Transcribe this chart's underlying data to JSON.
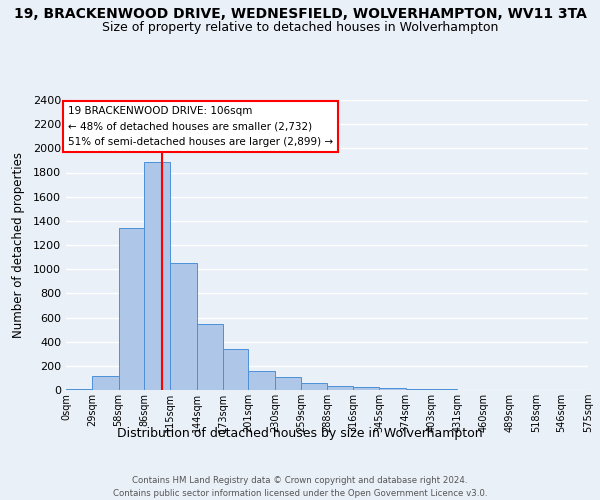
{
  "title": "19, BRACKENWOOD DRIVE, WEDNESFIELD, WOLVERHAMPTON, WV11 3TA",
  "subtitle": "Size of property relative to detached houses in Wolverhampton",
  "xlabel": "Distribution of detached houses by size in Wolverhampton",
  "ylabel": "Number of detached properties",
  "footer1": "Contains HM Land Registry data © Crown copyright and database right 2024.",
  "footer2": "Contains public sector information licensed under the Open Government Licence v3.0.",
  "bin_edges": [
    0,
    29,
    58,
    86,
    115,
    144,
    173,
    201,
    230,
    259,
    288,
    316,
    345,
    374,
    403,
    431,
    460,
    489,
    518,
    546,
    575
  ],
  "bin_labels": [
    "0sqm",
    "29sqm",
    "58sqm",
    "86sqm",
    "115sqm",
    "144sqm",
    "173sqm",
    "201sqm",
    "230sqm",
    "259sqm",
    "288sqm",
    "316sqm",
    "345sqm",
    "374sqm",
    "403sqm",
    "431sqm",
    "460sqm",
    "489sqm",
    "518sqm",
    "546sqm",
    "575sqm"
  ],
  "bar_heights": [
    10,
    120,
    1340,
    1890,
    1050,
    550,
    340,
    155,
    110,
    60,
    30,
    25,
    15,
    8,
    5,
    3,
    2,
    1,
    1,
    0
  ],
  "bar_color": "#aec6e8",
  "bar_edge_color": "#4a90d9",
  "vline_x": 106,
  "vline_color": "red",
  "annotation_text": "19 BRACKENWOOD DRIVE: 106sqm\n← 48% of detached houses are smaller (2,732)\n51% of semi-detached houses are larger (2,899) →",
  "annotation_box_color": "white",
  "annotation_box_edge": "red",
  "ylim": [
    0,
    2400
  ],
  "yticks": [
    0,
    200,
    400,
    600,
    800,
    1000,
    1200,
    1400,
    1600,
    1800,
    2000,
    2200,
    2400
  ],
  "bg_color": "#eaf0f8",
  "plot_bg_color": "#eaf0f8",
  "title_fontsize": 10,
  "subtitle_fontsize": 9
}
